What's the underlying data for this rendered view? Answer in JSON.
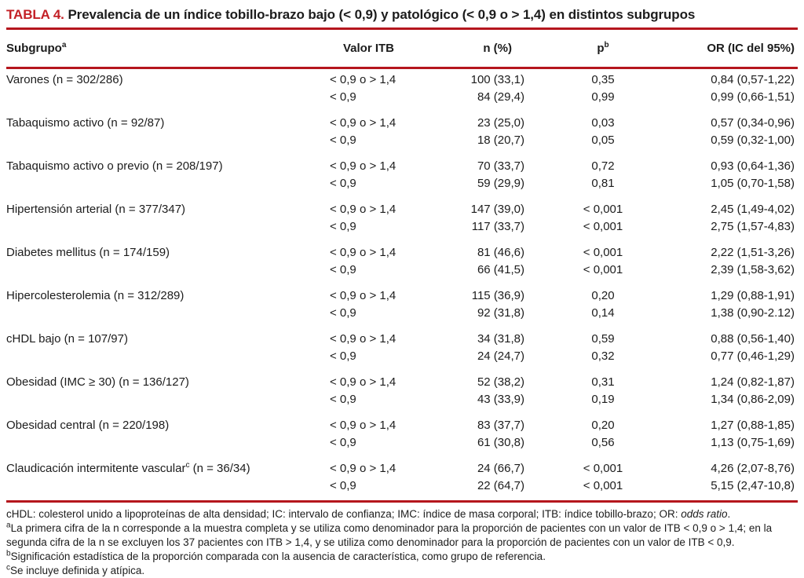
{
  "colors": {
    "accent_red": "#c32026",
    "rule_red": "#b5161d",
    "text": "#1c1c1c",
    "background": "#ffffff"
  },
  "title": {
    "label": "TABLA 4.",
    "text": "Prevalencia de un índice tobillo-brazo bajo (< 0,9) y patológico (< 0,9 o > 1,4) en distintos subgrupos"
  },
  "table": {
    "headers": {
      "subgroup": "Subgrupo",
      "subgroup_sup": "a",
      "itb": "Valor ITB",
      "n": "n (%)",
      "p": "p",
      "p_sup": "b",
      "or": "OR (IC del 95%)"
    },
    "groups": [
      {
        "label": "Varones (n = 302/286)",
        "label_sup": "",
        "label_tail": "",
        "rows": [
          [
            "< 0,9 o > 1,4",
            "100 (33,1)",
            "0,35",
            "0,84 (0,57-1,22)"
          ],
          [
            "< 0,9",
            "84 (29,4)",
            "0,99",
            "0,99 (0,66-1,51)"
          ]
        ]
      },
      {
        "label": "Tabaquismo activo (n = 92/87)",
        "label_sup": "",
        "label_tail": "",
        "rows": [
          [
            "< 0,9 o > 1,4",
            "23 (25,0)",
            "0,03",
            "0,57 (0,34-0,96)"
          ],
          [
            "< 0,9",
            "18 (20,7)",
            "0,05",
            "0,59 (0,32-1,00)"
          ]
        ]
      },
      {
        "label": "Tabaquismo activo o previo (n = 208/197)",
        "label_sup": "",
        "label_tail": "",
        "rows": [
          [
            "< 0,9 o > 1,4",
            "70 (33,7)",
            "0,72",
            "0,93 (0,64-1,36)"
          ],
          [
            "< 0,9",
            "59 (29,9)",
            "0,81",
            "1,05 (0,70-1,58)"
          ]
        ]
      },
      {
        "label": "Hipertensión arterial (n = 377/347)",
        "label_sup": "",
        "label_tail": "",
        "rows": [
          [
            "< 0,9 o > 1,4",
            "147 (39,0)",
            "< 0,001",
            "2,45 (1,49-4,02)"
          ],
          [
            "< 0,9",
            "117 (33,7)",
            "< 0,001",
            "2,75 (1,57-4,83)"
          ]
        ]
      },
      {
        "label": "Diabetes mellitus (n = 174/159)",
        "label_sup": "",
        "label_tail": "",
        "rows": [
          [
            "< 0,9 o > 1,4",
            "81 (46,6)",
            "< 0,001",
            "2,22 (1,51-3,26)"
          ],
          [
            "< 0,9",
            "66 (41,5)",
            "< 0,001",
            "2,39 (1,58-3,62)"
          ]
        ]
      },
      {
        "label": "Hipercolesterolemia (n = 312/289)",
        "label_sup": "",
        "label_tail": "",
        "rows": [
          [
            "< 0,9 o > 1,4",
            "115 (36,9)",
            "0,20",
            "1,29 (0,88-1,91)"
          ],
          [
            "< 0,9",
            "92 (31,8)",
            "0,14",
            "1,38 (0,90-2.12)"
          ]
        ]
      },
      {
        "label": "cHDL bajo (n = 107/97)",
        "label_sup": "",
        "label_tail": "",
        "rows": [
          [
            "< 0,9 o > 1,4",
            "34 (31,8)",
            "0,59",
            "0,88 (0,56-1,40)"
          ],
          [
            "< 0,9",
            "24 (24,7)",
            "0,32",
            "0,77 (0,46-1,29)"
          ]
        ]
      },
      {
        "label": "Obesidad (IMC ≥ 30) (n = 136/127)",
        "label_sup": "",
        "label_tail": "",
        "rows": [
          [
            "< 0,9 o > 1,4",
            "52 (38,2)",
            "0,31",
            "1,24 (0,82-1,87)"
          ],
          [
            "< 0,9",
            "43 (33,9)",
            "0,19",
            "1,34 (0,86-2,09)"
          ]
        ]
      },
      {
        "label": "Obesidad central (n = 220/198)",
        "label_sup": "",
        "label_tail": "",
        "rows": [
          [
            "< 0,9 o > 1,4",
            "83 (37,7)",
            "0,20",
            "1,27 (0,88-1,85)"
          ],
          [
            "< 0,9",
            "61 (30,8)",
            "0,56",
            "1,13 (0,75-1,69)"
          ]
        ]
      },
      {
        "label": "Claudicación intermitente vascular",
        "label_sup": "c",
        "label_tail": " (n = 36/34)",
        "rows": [
          [
            "< 0,9 o > 1,4",
            "24 (66,7)",
            "< 0,001",
            "4,26 (2,07-8,76)"
          ],
          [
            "< 0,9",
            "22 (64,7)",
            "< 0,001",
            "5,15 (2,47-10,8)"
          ]
        ]
      }
    ]
  },
  "footnotes": [
    {
      "sup": "",
      "text": "cHDL: colesterol unido a lipoproteínas de alta densidad; IC: intervalo de confianza; IMC: índice de masa corporal; ITB: índice tobillo-brazo; OR: ",
      "italic": "odds ratio",
      "tail": "."
    },
    {
      "sup": "a",
      "text": "La primera cifra de la n corresponde a la muestra completa y se utiliza como denominador para la proporción de pacientes con un valor de ITB < 0,9 o > 1,4; en la segunda cifra de la n se excluyen los 37 pacientes con ITB > 1,4, y se utiliza como denominador para la proporción de pacientes con un valor de ITB < 0,9.",
      "italic": "",
      "tail": ""
    },
    {
      "sup": "b",
      "text": "Significación estadística de la proporción comparada con la ausencia de característica, como grupo de referencia.",
      "italic": "",
      "tail": ""
    },
    {
      "sup": "c",
      "text": "Se incluye definida y atípica.",
      "italic": "",
      "tail": ""
    }
  ]
}
